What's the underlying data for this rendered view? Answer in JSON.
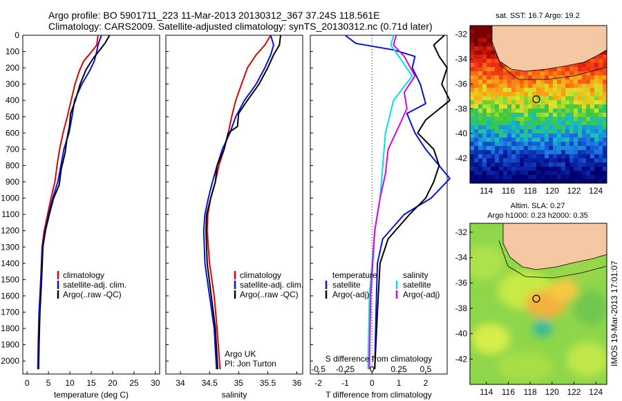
{
  "header": {
    "line1": "Argo profile: BO 5901711_223 11-Mar-2013 20130312_367 37.24S 118.561E",
    "line2": "Climatology: CARS2009. Satellite-adjusted climatology: synTS_20130312.nc (0.71d later)"
  },
  "colors": {
    "climatology": "#e00000",
    "satellite": "#0010e0",
    "argo": "#000000",
    "sat_salinity": "#00e0e0",
    "argo_salinity": "#e000e0"
  },
  "depth_axis": {
    "ticks": [
      0,
      100,
      200,
      300,
      400,
      500,
      600,
      700,
      800,
      900,
      1000,
      1100,
      1200,
      1300,
      1400,
      1500,
      1600,
      1700,
      1800,
      1900,
      2000
    ],
    "range": [
      0,
      2080
    ],
    "inverted": true
  },
  "chart_data": [
    {
      "type": "line",
      "id": "temperature",
      "xlabel": "temperature (deg C)",
      "xlim": [
        -1,
        31
      ],
      "xticks": [
        0,
        5,
        10,
        15,
        20,
        25,
        30
      ],
      "legend": [
        "climatology",
        "satellite-adj. clim.",
        "Argo(..raw -QC)"
      ],
      "series": [
        {
          "name": "climatology",
          "color": "#e00000",
          "points": [
            [
              16.6,
              0
            ],
            [
              16.3,
              60
            ],
            [
              14.8,
              110
            ],
            [
              13.2,
              160
            ],
            [
              12.2,
              220
            ],
            [
              11.2,
              300
            ],
            [
              10.3,
              400
            ],
            [
              9.4,
              500
            ],
            [
              8.4,
              600
            ],
            [
              7.6,
              700
            ],
            [
              7.0,
              800
            ],
            [
              6.5,
              900
            ],
            [
              5.6,
              1000
            ],
            [
              4.8,
              1100
            ],
            [
              4.0,
              1200
            ],
            [
              3.5,
              1300
            ],
            [
              3.2,
              1500
            ],
            [
              2.9,
              1700
            ],
            [
              2.7,
              1900
            ],
            [
              2.6,
              2050
            ]
          ]
        },
        {
          "name": "satellite-adj. clim.",
          "color": "#0010e0",
          "points": [
            [
              17.4,
              0
            ],
            [
              16.6,
              60
            ],
            [
              16.2,
              110
            ],
            [
              15.7,
              160
            ],
            [
              14.6,
              220
            ],
            [
              12.8,
              300
            ],
            [
              11.1,
              400
            ],
            [
              10.5,
              500
            ],
            [
              9.8,
              600
            ],
            [
              8.6,
              700
            ],
            [
              7.9,
              800
            ],
            [
              7.2,
              900
            ],
            [
              6.0,
              1000
            ],
            [
              5.0,
              1100
            ],
            [
              4.2,
              1200
            ],
            [
              3.6,
              1300
            ],
            [
              3.2,
              1500
            ],
            [
              2.8,
              1700
            ],
            [
              2.6,
              1900
            ],
            [
              2.5,
              2050
            ]
          ]
        },
        {
          "name": "Argo(..raw -QC)",
          "color": "#000000",
          "points": [
            [
              19.3,
              0
            ],
            [
              18.2,
              50
            ],
            [
              17.0,
              90
            ],
            [
              15.5,
              140
            ],
            [
              13.8,
              210
            ],
            [
              12.4,
              300
            ],
            [
              11.3,
              400
            ],
            [
              10.2,
              480
            ],
            [
              9.9,
              560
            ],
            [
              9.3,
              640
            ],
            [
              8.9,
              720
            ],
            [
              8.0,
              820
            ],
            [
              7.5,
              920
            ],
            [
              6.2,
              1000
            ],
            [
              5.2,
              1100
            ],
            [
              4.3,
              1200
            ],
            [
              3.7,
              1300
            ],
            [
              3.4,
              1500
            ],
            [
              3.0,
              1700
            ],
            [
              2.8,
              1900
            ],
            [
              2.7,
              2050
            ]
          ]
        }
      ]
    },
    {
      "type": "line",
      "id": "salinity",
      "xlabel": "salinity",
      "xlim": [
        33.75,
        36.1
      ],
      "xticks": [
        34,
        34.5,
        35,
        35.5,
        36
      ],
      "legend": [
        "climatology",
        "satellite-adj. clim.",
        "Argo(..raw -QC)"
      ],
      "annotation": [
        "Argo UK",
        "PI: Jon Turton"
      ],
      "series": [
        {
          "name": "climatology",
          "color": "#e00000",
          "points": [
            [
              35.55,
              0
            ],
            [
              35.45,
              60
            ],
            [
              35.3,
              120
            ],
            [
              35.15,
              200
            ],
            [
              35.05,
              300
            ],
            [
              34.95,
              400
            ],
            [
              34.88,
              500
            ],
            [
              34.82,
              600
            ],
            [
              34.75,
              700
            ],
            [
              34.66,
              800
            ],
            [
              34.6,
              900
            ],
            [
              34.52,
              1000
            ],
            [
              34.47,
              1100
            ],
            [
              34.46,
              1200
            ],
            [
              34.5,
              1400
            ],
            [
              34.58,
              1600
            ],
            [
              34.63,
              1800
            ],
            [
              34.68,
              2050
            ]
          ]
        },
        {
          "name": "satellite-adj. clim.",
          "color": "#0010e0",
          "points": [
            [
              35.55,
              0
            ],
            [
              35.6,
              60
            ],
            [
              35.55,
              120
            ],
            [
              35.45,
              200
            ],
            [
              35.3,
              300
            ],
            [
              35.1,
              400
            ],
            [
              34.95,
              500
            ],
            [
              34.85,
              600
            ],
            [
              34.72,
              700
            ],
            [
              34.63,
              800
            ],
            [
              34.55,
              900
            ],
            [
              34.48,
              1000
            ],
            [
              34.42,
              1100
            ],
            [
              34.4,
              1200
            ],
            [
              34.42,
              1400
            ],
            [
              34.5,
              1600
            ],
            [
              34.58,
              1800
            ],
            [
              34.62,
              2050
            ]
          ]
        },
        {
          "name": "Argo(..raw -QC)",
          "color": "#000000",
          "points": [
            [
              35.72,
              0
            ],
            [
              35.7,
              60
            ],
            [
              35.6,
              120
            ],
            [
              35.5,
              200
            ],
            [
              35.35,
              300
            ],
            [
              35.15,
              400
            ],
            [
              35.0,
              480
            ],
            [
              34.98,
              560
            ],
            [
              34.82,
              600
            ],
            [
              34.75,
              700
            ],
            [
              34.63,
              800
            ],
            [
              34.6,
              900
            ],
            [
              34.52,
              1000
            ],
            [
              34.45,
              1100
            ],
            [
              34.44,
              1200
            ],
            [
              34.46,
              1400
            ],
            [
              34.53,
              1600
            ],
            [
              34.6,
              1800
            ],
            [
              34.64,
              2050
            ]
          ]
        }
      ]
    },
    {
      "type": "line",
      "id": "differences",
      "xlabel": "T difference from climatology",
      "xlabel_top": "S difference from climatology",
      "xlim": [
        -2.3,
        2.8
      ],
      "xticks": [
        -2,
        -1,
        0,
        1,
        2
      ],
      "xticks_top": [
        "-0.5",
        "-0.25",
        "0",
        "0.25",
        "0.5"
      ],
      "legend_titles": [
        "temperature",
        "salinity"
      ],
      "legend": [
        "satellite",
        "Argo(-adj)",
        "satellite",
        "Argo(-adj)"
      ],
      "series": [
        {
          "name": "satellite",
          "group": "temperature",
          "color": "#0010e0",
          "points": [
            [
              -1.0,
              0
            ],
            [
              -0.6,
              50
            ],
            [
              0.8,
              90
            ],
            [
              1.6,
              130
            ],
            [
              1.5,
              200
            ],
            [
              1.8,
              300
            ],
            [
              2.0,
              420
            ],
            [
              1.3,
              480
            ],
            [
              1.6,
              600
            ],
            [
              2.0,
              700
            ],
            [
              2.5,
              800
            ],
            [
              2.9,
              880
            ],
            [
              2.2,
              1000
            ],
            [
              1.2,
              1100
            ],
            [
              0.4,
              1250
            ],
            [
              0.2,
              1400
            ],
            [
              0.15,
              1700
            ],
            [
              0.1,
              2050
            ]
          ]
        },
        {
          "name": "Argo(-adj)",
          "group": "temperature",
          "color": "#000000",
          "points": [
            [
              2.7,
              0
            ],
            [
              2.3,
              60
            ],
            [
              2.5,
              130
            ],
            [
              2.8,
              200
            ],
            [
              2.6,
              300
            ],
            [
              2.9,
              400
            ],
            [
              2.0,
              520
            ],
            [
              1.7,
              600
            ],
            [
              2.3,
              700
            ],
            [
              2.5,
              800
            ],
            [
              2.3,
              900
            ],
            [
              2.0,
              1000
            ],
            [
              1.4,
              1100
            ],
            [
              0.6,
              1250
            ],
            [
              0.3,
              1400
            ],
            [
              0.2,
              1700
            ],
            [
              0.1,
              2050
            ]
          ]
        },
        {
          "name": "satellite",
          "group": "salinity",
          "color": "#00e0e0",
          "points": [
            [
              0.8,
              0
            ],
            [
              0.7,
              60
            ],
            [
              1.0,
              130
            ],
            [
              1.5,
              250
            ],
            [
              0.8,
              400
            ],
            [
              0.5,
              600
            ],
            [
              0.4,
              800
            ],
            [
              0.3,
              1000
            ],
            [
              0.1,
              1200
            ],
            [
              -0.1,
              1600
            ],
            [
              -0.15,
              2050
            ]
          ]
        },
        {
          "name": "Argo(-adj)",
          "group": "salinity",
          "color": "#e000e0",
          "points": [
            [
              0.9,
              0
            ],
            [
              0.8,
              60
            ],
            [
              1.2,
              130
            ],
            [
              1.6,
              250
            ],
            [
              1.2,
              350
            ],
            [
              1.3,
              450
            ],
            [
              1.0,
              560
            ],
            [
              0.6,
              700
            ],
            [
              0.5,
              850
            ],
            [
              0.3,
              1000
            ],
            [
              0.1,
              1200
            ],
            [
              -0.05,
              1600
            ],
            [
              -0.1,
              2050
            ]
          ]
        }
      ]
    },
    {
      "type": "heatmap",
      "id": "sst-map",
      "title": "sat. SST: 16.7 Argo: 19.2",
      "xlim": [
        112.5,
        125
      ],
      "ylim": [
        -44,
        -31.3
      ],
      "xticks": [
        114,
        116,
        118,
        120,
        122,
        124
      ],
      "yticks": [
        -32,
        -34,
        -36,
        -38,
        -40,
        -42
      ],
      "argo_position": [
        118.561,
        -37.24
      ]
    },
    {
      "type": "heatmap",
      "id": "sla-map",
      "title_lines": [
        "Altim. SLA: 0.27",
        "Argo h1000: 0.23 h2000: 0.35"
      ],
      "xlim": [
        112.5,
        125
      ],
      "ylim": [
        -44,
        -31.3
      ],
      "xticks": [
        114,
        116,
        118,
        120,
        122,
        124
      ],
      "yticks": [
        -32,
        -34,
        -36,
        -38,
        -40,
        -42
      ],
      "argo_position": [
        118.561,
        -37.24
      ]
    }
  ],
  "footer": {
    "vertical_stamp": "IMOS 19-Mar-2013 17:01:07"
  }
}
